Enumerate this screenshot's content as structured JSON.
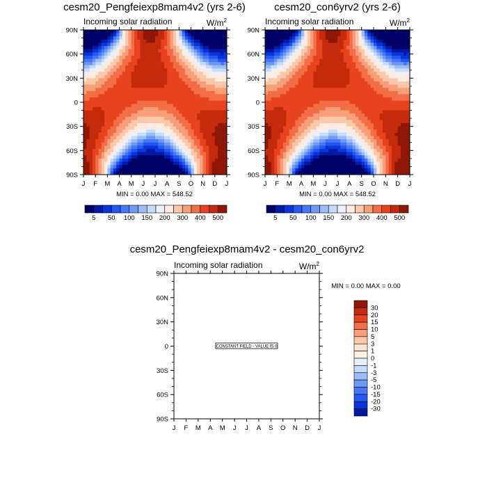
{
  "chart_data": [
    {
      "type": "heatmap",
      "title": "cesm20_Pengfeiexp8mam4v2 (yrs 2-6)",
      "left_string": "Incoming solar radiation",
      "units_base": "W/m",
      "units_exp": "2",
      "x_ticks": [
        "J",
        "F",
        "M",
        "A",
        "M",
        "J",
        "J",
        "A",
        "S",
        "O",
        "N",
        "D",
        "J"
      ],
      "y_ticks": [
        "90N",
        "60N",
        "30N",
        "0",
        "30S",
        "60S",
        "90S"
      ],
      "ylim": [
        -90,
        90
      ],
      "stats": "MIN =   0.00 MAX = 548.52",
      "min": 0.0,
      "max": 548.52,
      "levels": [
        5,
        25,
        50,
        75,
        100,
        125,
        150,
        175,
        200,
        250,
        300,
        350,
        400,
        450,
        500
      ],
      "colorbar_labels": [
        "5",
        "50",
        "100",
        "150",
        "200",
        "300",
        "400",
        "500"
      ],
      "colors": [
        "#000066",
        "#0019a6",
        "#0835d9",
        "#2456f2",
        "#4676f5",
        "#6f98f5",
        "#9bbcf7",
        "#c6dcfa",
        "#eaf1fd",
        "#fdebe0",
        "#fbc8ab",
        "#f89e79",
        "#f26e47",
        "#e9421e",
        "#c42b0c",
        "#8f1706"
      ]
    },
    {
      "type": "heatmap",
      "title": "cesm20_con6yrv2 (yrs 2-6)",
      "left_string": "Incoming solar radiation",
      "units_base": "W/m",
      "units_exp": "2",
      "x_ticks": [
        "J",
        "F",
        "M",
        "A",
        "M",
        "J",
        "J",
        "A",
        "S",
        "O",
        "N",
        "D",
        "J"
      ],
      "y_ticks": [
        "90N",
        "60N",
        "30N",
        "0",
        "30S",
        "60S",
        "90S"
      ],
      "ylim": [
        -90,
        90
      ],
      "stats": "MIN =   0.00 MAX = 548.52",
      "min": 0.0,
      "max": 548.52,
      "levels": [
        5,
        25,
        50,
        75,
        100,
        125,
        150,
        175,
        200,
        250,
        300,
        350,
        400,
        450,
        500
      ],
      "colorbar_labels": [
        "5",
        "50",
        "100",
        "150",
        "200",
        "300",
        "400",
        "500"
      ],
      "colors": [
        "#000066",
        "#0019a6",
        "#0835d9",
        "#2456f2",
        "#4676f5",
        "#6f98f5",
        "#9bbcf7",
        "#c6dcfa",
        "#eaf1fd",
        "#fdebe0",
        "#fbc8ab",
        "#f89e79",
        "#f26e47",
        "#e9421e",
        "#c42b0c",
        "#8f1706"
      ]
    },
    {
      "type": "heatmap",
      "title": "cesm20_Pengfeiexp8mam4v2 - cesm20_con6yrv2",
      "left_string": "Incoming solar radiation",
      "units_base": "W/m",
      "units_exp": "2",
      "x_ticks": [
        "J",
        "F",
        "M",
        "A",
        "M",
        "J",
        "J",
        "A",
        "S",
        "O",
        "N",
        "D",
        "J"
      ],
      "y_ticks": [
        "90N",
        "60N",
        "30N",
        "0",
        "30S",
        "60S",
        "90S"
      ],
      "ylim": [
        -90,
        90
      ],
      "stats": "MIN =   0.00 MAX =   0.00",
      "min": 0.0,
      "max": 0.0,
      "annotation": "CONSTANT FIELD - VALUE IS 0",
      "colorbar_labels": [
        "30",
        "20",
        "15",
        "10",
        "5",
        "3",
        "1",
        "0",
        "-1",
        "-3",
        "-5",
        "-10",
        "-15",
        "-20",
        "-30"
      ],
      "colors": [
        "#8f1706",
        "#c42b0c",
        "#e9421e",
        "#f26e47",
        "#f89e79",
        "#fbc8ab",
        "#fde3d2",
        "#fdf1e8",
        "#e6eefb",
        "#c6dcfa",
        "#9bbcf7",
        "#6f98f5",
        "#4676f5",
        "#2456f2",
        "#0835d9",
        "#001a9e"
      ]
    }
  ]
}
